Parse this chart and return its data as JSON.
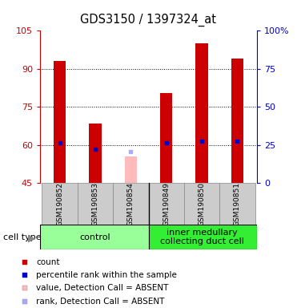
{
  "title": "GDS3150 / 1397324_at",
  "samples": [
    "GSM190852",
    "GSM190853",
    "GSM190854",
    "GSM190849",
    "GSM190850",
    "GSM190851"
  ],
  "groups": [
    {
      "name": "control",
      "color": "#99ff99",
      "n_samples": 3
    },
    {
      "name": "inner medullary\ncollecting duct cell",
      "color": "#33ee33",
      "n_samples": 3
    }
  ],
  "ylim_left": [
    45,
    105
  ],
  "ylim_right": [
    0,
    100
  ],
  "yticks_left": [
    45,
    60,
    75,
    90,
    105
  ],
  "yticks_right": [
    0,
    25,
    50,
    75,
    100
  ],
  "ytick_labels_left": [
    "45",
    "60",
    "75",
    "90",
    "105"
  ],
  "ytick_labels_right": [
    "0",
    "25",
    "50",
    "75",
    "100%"
  ],
  "left_axis_color": "#cc0000",
  "right_axis_color": "#0000cc",
  "bar_color": "#cc0000",
  "absent_bar_color": "#ffbbbb",
  "dot_color": "#0000cc",
  "absent_dot_color": "#aaaaff",
  "bar_width": 0.35,
  "counts": [
    93.0,
    68.5,
    null,
    80.5,
    100.0,
    94.0
  ],
  "absent_counts": [
    null,
    null,
    55.5,
    null,
    null,
    null
  ],
  "percentile_ranks_left": [
    60.8,
    58.5,
    null,
    61.0,
    61.5,
    61.5
  ],
  "absent_ranks_left": [
    null,
    null,
    57.5,
    null,
    null,
    null
  ],
  "grid_lines": [
    60,
    75,
    90
  ],
  "legend_items": [
    {
      "color": "#cc0000",
      "label": "count"
    },
    {
      "color": "#0000cc",
      "label": "percentile rank within the sample"
    },
    {
      "color": "#ffbbbb",
      "label": "value, Detection Call = ABSENT"
    },
    {
      "color": "#aaaaff",
      "label": "rank, Detection Call = ABSENT"
    }
  ],
  "cell_type_label": "cell type",
  "background_color": "#ffffff",
  "plot_bg_color": "#ffffff",
  "tick_area_color": "#cccccc"
}
